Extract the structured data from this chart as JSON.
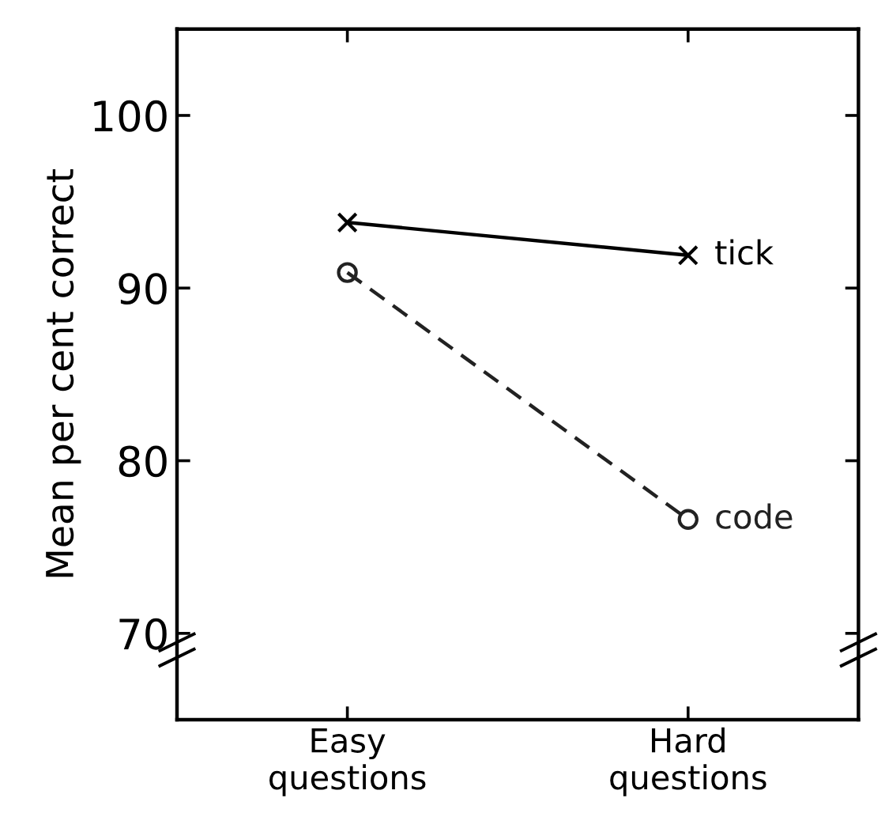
{
  "chart_data": {
    "type": "line",
    "ylabel": "Mean per cent correct",
    "categories": [
      "Easy\nquestions",
      "Hard\nquestions"
    ],
    "series": [
      {
        "name": "tick",
        "color": "#000000",
        "values": [
          93.8,
          91.9
        ],
        "marker": "cross",
        "line_style": "solid"
      },
      {
        "name": "code",
        "color": "#222222",
        "values": [
          90.9,
          76.6
        ],
        "marker": "circle",
        "line_style": "dashed"
      }
    ],
    "ylim": [
      65,
      105
    ],
    "yticks": [
      70,
      80,
      90,
      100
    ],
    "grid": false,
    "legend": false
  }
}
